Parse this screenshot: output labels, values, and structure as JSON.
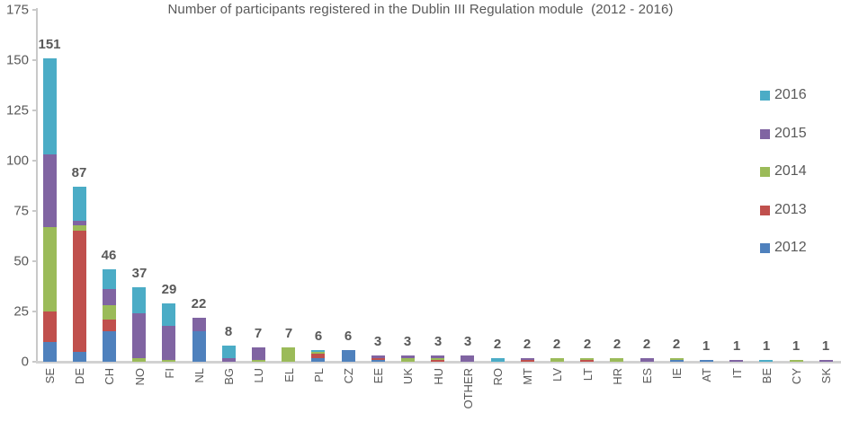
{
  "chart_data": {
    "type": "bar",
    "stacked": true,
    "title": "Number of participants registered in the Dublin III Regulation module  (2012 - 2016)",
    "xlabel": "",
    "ylabel": "",
    "ylim": [
      0,
      175
    ],
    "y_ticks": [
      0,
      25,
      50,
      75,
      100,
      125,
      150,
      175
    ],
    "grid": false,
    "legend_position": "right",
    "categories": [
      "SE",
      "DE",
      "CH",
      "NO",
      "FI",
      "NL",
      "BG",
      "LU",
      "EL",
      "PL",
      "CZ",
      "EE",
      "UK",
      "HU",
      "OTHER",
      "RO",
      "MT",
      "LV",
      "LT",
      "HR",
      "ES",
      "IE",
      "AT",
      "IT",
      "BE",
      "CY",
      "SK"
    ],
    "totals": [
      151,
      87,
      46,
      37,
      29,
      22,
      8,
      7,
      7,
      6,
      6,
      3,
      3,
      3,
      3,
      2,
      2,
      2,
      2,
      2,
      2,
      2,
      1,
      1,
      1,
      1,
      1
    ],
    "series": [
      {
        "name": "2012",
        "color": "#4F81BD",
        "values": [
          10,
          5,
          15,
          0,
          0,
          15,
          0,
          0,
          0,
          2,
          6,
          1,
          0,
          0,
          0,
          0,
          0,
          0,
          0,
          0,
          0,
          1,
          1,
          0,
          0,
          0,
          0
        ]
      },
      {
        "name": "2013",
        "color": "#C0504D",
        "values": [
          15,
          60,
          6,
          0,
          0,
          0,
          0,
          0,
          0,
          2,
          0,
          1,
          0,
          1,
          0,
          0,
          1,
          0,
          1,
          0,
          0,
          0,
          0,
          0,
          0,
          0,
          0
        ]
      },
      {
        "name": "2014",
        "color": "#9BBB59",
        "values": [
          42,
          3,
          7,
          2,
          1,
          0,
          0,
          1,
          7,
          1,
          0,
          0,
          2,
          1,
          0,
          0,
          0,
          2,
          1,
          2,
          0,
          1,
          0,
          0,
          0,
          1,
          0
        ]
      },
      {
        "name": "2015",
        "color": "#8064A2",
        "values": [
          36,
          2,
          8,
          22,
          17,
          7,
          2,
          6,
          0,
          0,
          0,
          1,
          1,
          1,
          3,
          0,
          1,
          0,
          0,
          0,
          2,
          0,
          0,
          1,
          0,
          0,
          1
        ]
      },
      {
        "name": "2016",
        "color": "#4BACC6",
        "values": [
          48,
          17,
          10,
          13,
          11,
          0,
          6,
          0,
          0,
          1,
          0,
          0,
          0,
          0,
          0,
          2,
          0,
          0,
          0,
          0,
          0,
          0,
          0,
          0,
          1,
          0,
          0
        ]
      }
    ],
    "legend": [
      {
        "label": "2016",
        "color": "#4BACC6"
      },
      {
        "label": "2015",
        "color": "#8064A2"
      },
      {
        "label": "2014",
        "color": "#9BBB59"
      },
      {
        "label": "2013",
        "color": "#C0504D"
      },
      {
        "label": "2012",
        "color": "#4F81BD"
      }
    ]
  }
}
